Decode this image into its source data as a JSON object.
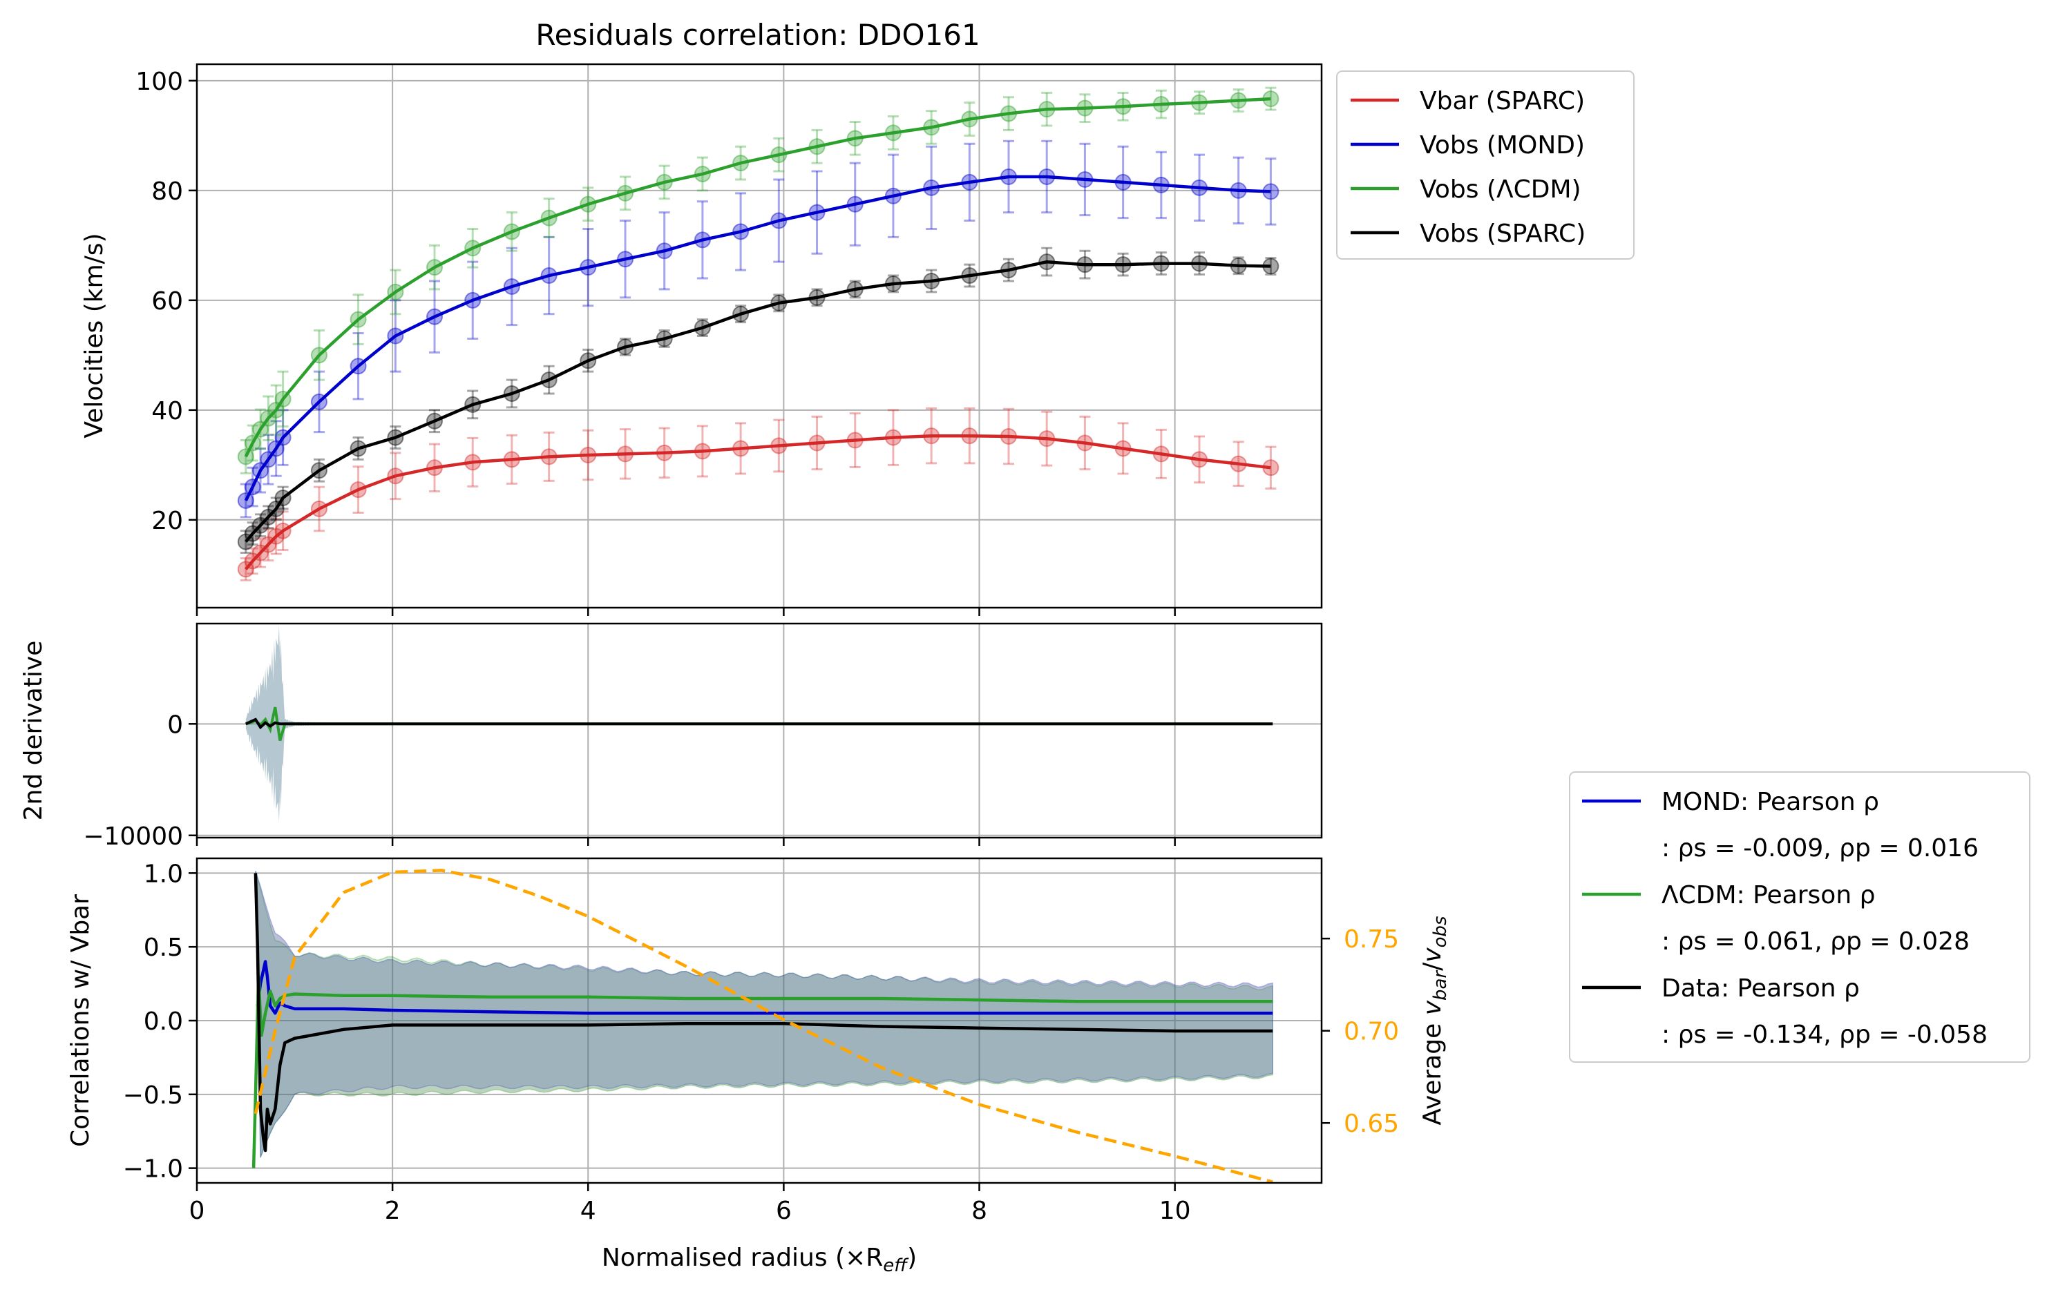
{
  "figure": {
    "title": "Residuals correlation: DDO161",
    "xlabel": "Normalised radius (×R",
    "xlabel_sub": "eff",
    "xlabel_tail": ")"
  },
  "chart_data": [
    {
      "type": "line",
      "title": "Residuals correlation: DDO161",
      "xlabel": "",
      "ylabel": "Velocities (km/s)",
      "xlim": [
        0,
        11.5
      ],
      "ylim": [
        4,
        103
      ],
      "xticks": [
        0,
        2,
        4,
        6,
        8,
        10
      ],
      "yticks": [
        20,
        40,
        60,
        80,
        100
      ],
      "grid": true,
      "legend_placement": "outside upper right",
      "x": [
        0.5,
        0.57,
        0.65,
        0.73,
        0.81,
        0.88,
        1.25,
        1.65,
        2.03,
        2.43,
        2.82,
        3.22,
        3.6,
        4.0,
        4.38,
        4.78,
        5.17,
        5.56,
        5.95,
        6.34,
        6.73,
        7.12,
        7.51,
        7.9,
        8.3,
        8.69,
        9.08,
        9.47,
        9.86,
        10.25,
        10.65,
        10.98
      ],
      "series": [
        {
          "name": "Vbar (SPARC)",
          "color": "#d62728",
          "values": [
            11,
            12.5,
            14,
            15.5,
            17,
            18,
            22,
            25.5,
            28,
            29.5,
            30.5,
            31,
            31.5,
            31.8,
            32,
            32.2,
            32.5,
            33,
            33.5,
            34,
            34.5,
            35,
            35.3,
            35.3,
            35.2,
            34.8,
            34,
            33,
            32,
            31,
            30.2,
            29.5
          ],
          "errors": [
            2,
            2.3,
            2.6,
            2.9,
            3.2,
            3.5,
            4,
            4.2,
            4.2,
            4.3,
            4.4,
            4.4,
            4.4,
            4.5,
            4.5,
            4.5,
            4.6,
            4.6,
            4.7,
            4.8,
            4.9,
            5,
            5,
            5,
            5,
            4.9,
            4.8,
            4.6,
            4.4,
            4.2,
            4,
            3.8
          ]
        },
        {
          "name": "Vobs (MOND)",
          "color": "#0000cd",
          "values": [
            23.5,
            26,
            29,
            31,
            33,
            35,
            41.5,
            48,
            53.5,
            57,
            60,
            62.5,
            64.5,
            66,
            67.5,
            69,
            71,
            72.5,
            74.5,
            76,
            77.5,
            79,
            80.5,
            81.5,
            82.5,
            82.5,
            82,
            81.5,
            81,
            80.5,
            80,
            79.8
          ],
          "errors": [
            3,
            3.5,
            4,
            4.5,
            5,
            5,
            5.5,
            6,
            6.5,
            6.5,
            7,
            7,
            7,
            7,
            7,
            7,
            7,
            7,
            7.5,
            7.5,
            7.5,
            7.5,
            7.5,
            7,
            6.5,
            6.5,
            6.5,
            6.5,
            6,
            6,
            6,
            6
          ]
        },
        {
          "name": "Vobs (ΛCDM)",
          "color": "#2ca02c",
          "values": [
            31.5,
            34,
            36.5,
            38.5,
            40,
            42,
            50,
            56.5,
            61.5,
            66,
            69.5,
            72.5,
            75,
            77.5,
            79.5,
            81.5,
            83,
            85,
            86.5,
            88,
            89.5,
            90.5,
            91.5,
            93,
            94,
            94.8,
            95,
            95.3,
            95.7,
            96,
            96.4,
            96.7
          ],
          "errors": [
            3,
            3.2,
            3.6,
            4,
            4.5,
            5,
            4.5,
            4.5,
            4,
            4,
            3.5,
            3.5,
            3.5,
            3,
            3,
            3,
            3,
            3,
            3,
            3,
            3,
            3,
            3,
            3,
            3,
            3,
            2.5,
            2.5,
            2.5,
            2,
            2,
            2
          ]
        },
        {
          "name": "Vobs (SPARC)",
          "color": "#000000",
          "values": [
            16,
            17.5,
            19,
            20.5,
            22,
            24,
            29,
            33,
            35,
            38,
            41,
            43,
            45.5,
            49,
            51.5,
            53,
            55,
            57.5,
            59.5,
            60.5,
            62,
            63,
            63.5,
            64.5,
            65.5,
            67,
            66.5,
            66.5,
            66.7,
            66.7,
            66.3,
            66.2
          ],
          "errors": [
            2,
            2,
            2,
            2,
            2,
            2,
            2,
            2,
            2,
            2,
            2.5,
            2.5,
            2.5,
            2,
            1.5,
            1.5,
            1.5,
            1.5,
            1.5,
            1.5,
            1.5,
            1.5,
            2,
            2,
            2,
            2.5,
            2.5,
            2,
            2,
            2,
            1.5,
            1.5
          ]
        }
      ]
    },
    {
      "type": "line",
      "xlabel": "",
      "ylabel": "2nd derivative",
      "xlim": [
        0,
        11.5
      ],
      "ylim": [
        -10200,
        9000
      ],
      "yticks": [
        -10000,
        0
      ],
      "ytick_labels": [
        "−10000",
        "0"
      ],
      "grid": true,
      "series_colors": {
        "mond": "#0000cd",
        "lcdm": "#2ca02c",
        "data": "#000000"
      },
      "x": [
        0.5,
        0.55,
        0.6,
        0.65,
        0.7,
        0.75,
        0.8,
        0.85,
        0.9,
        1.0,
        2.0,
        4.0,
        6.0,
        8.0,
        10.0,
        11.0
      ],
      "data_values": [
        0,
        200,
        400,
        -300,
        100,
        -200,
        100,
        0,
        0,
        0,
        0,
        0,
        0,
        0,
        0,
        0
      ],
      "lcdm_values": [
        0,
        100,
        300,
        -100,
        400,
        -500,
        1500,
        -1500,
        0,
        0,
        0,
        0,
        0,
        0,
        0,
        0
      ],
      "band_halfwidth": [
        500,
        2000,
        3000,
        4000,
        5000,
        6000,
        8000,
        9500,
        500,
        200,
        0,
        0,
        0,
        0,
        0,
        0
      ]
    },
    {
      "type": "line",
      "xlabel": "Normalised radius (×Reff)",
      "ylabel": "Correlations w/ Vbar",
      "y2label": "Average vbar/vobs",
      "xlim": [
        0,
        11.5
      ],
      "ylim": [
        -1.1,
        1.1
      ],
      "y2lim": [
        0.6175,
        0.7935
      ],
      "xticks": [
        0,
        2,
        4,
        6,
        8,
        10
      ],
      "yticks": [
        -1.0,
        -0.5,
        0.0,
        0.5,
        1.0
      ],
      "ytick_labels": [
        "−1.0",
        "−0.5",
        "0.0",
        "0.5",
        "1.0"
      ],
      "y2ticks": [
        0.65,
        0.7,
        0.75
      ],
      "y2tick_labels": [
        "0.65",
        "0.70",
        "0.75"
      ],
      "grid": true,
      "legend_placement": "outside lower right",
      "series": [
        {
          "name": "MOND: Pearson ρ",
          "color": "#0000cd",
          "x": [
            0.62,
            0.65,
            0.7,
            0.72,
            0.75,
            0.8,
            0.85,
            0.9,
            1.0,
            1.5,
            2.0,
            3.0,
            4.0,
            5.0,
            6.0,
            7.0,
            8.0,
            9.0,
            10.0,
            11.0
          ],
          "values": [
            0.1,
            0.25,
            0.4,
            0.3,
            0.1,
            0.05,
            0.12,
            0.1,
            0.08,
            0.08,
            0.07,
            0.06,
            0.05,
            0.05,
            0.05,
            0.05,
            0.05,
            0.05,
            0.05,
            0.05
          ]
        },
        {
          "name": "ΛCDM: Pearson ρ",
          "color": "#2ca02c",
          "x": [
            0.58,
            0.6,
            0.63,
            0.66,
            0.7,
            0.75,
            0.8,
            0.85,
            0.9,
            1.0,
            1.5,
            2.0,
            3.0,
            4.0,
            5.0,
            6.0,
            7.0,
            8.0,
            9.0,
            10.0,
            11.0
          ],
          "values": [
            -1.0,
            -0.5,
            0.3,
            -0.1,
            0.05,
            0.2,
            0.1,
            0.15,
            0.17,
            0.18,
            0.17,
            0.17,
            0.16,
            0.16,
            0.15,
            0.15,
            0.15,
            0.14,
            0.13,
            0.13,
            0.13
          ]
        },
        {
          "name": "Data: Pearson ρ",
          "color": "#000000",
          "x": [
            0.6,
            0.62,
            0.65,
            0.68,
            0.7,
            0.72,
            0.75,
            0.8,
            0.85,
            0.9,
            1.0,
            1.5,
            2.0,
            3.0,
            4.0,
            5.0,
            6.0,
            7.0,
            8.0,
            9.0,
            10.0,
            11.0
          ],
          "values": [
            1.0,
            0.5,
            -0.6,
            -0.8,
            -0.88,
            -0.6,
            -0.7,
            -0.6,
            -0.3,
            -0.15,
            -0.12,
            -0.06,
            -0.03,
            -0.03,
            -0.03,
            -0.02,
            -0.02,
            -0.04,
            -0.05,
            -0.06,
            -0.07,
            -0.07
          ]
        },
        {
          "name": "Average vbar/vobs",
          "color": "#ffa500",
          "axis": "right",
          "dashed": true,
          "x": [
            0.6,
            0.8,
            1.0,
            1.5,
            2.0,
            2.5,
            3.0,
            3.5,
            4.0,
            5.0,
            6.0,
            7.0,
            8.0,
            9.0,
            10.0,
            11.0
          ],
          "values": [
            0.655,
            0.7,
            0.74,
            0.775,
            0.786,
            0.787,
            0.782,
            0.773,
            0.762,
            0.735,
            0.706,
            0.68,
            0.66,
            0.645,
            0.632,
            0.618
          ]
        }
      ],
      "bands": {
        "mond_upper": [
          [
            0.6,
            1.0
          ],
          [
            0.8,
            0.6
          ],
          [
            1.0,
            0.45
          ],
          [
            2.0,
            0.4
          ],
          [
            3.0,
            0.38
          ],
          [
            4.0,
            0.36
          ],
          [
            5.0,
            0.32
          ],
          [
            6.0,
            0.31
          ],
          [
            7.0,
            0.29
          ],
          [
            8.0,
            0.27
          ],
          [
            9.0,
            0.26
          ],
          [
            10.0,
            0.25
          ],
          [
            11.0,
            0.24
          ]
        ],
        "mond_lower": [
          [
            0.6,
            -1.0
          ],
          [
            0.8,
            -0.7
          ],
          [
            1.0,
            -0.5
          ],
          [
            2.0,
            -0.45
          ],
          [
            3.0,
            -0.45
          ],
          [
            4.0,
            -0.45
          ],
          [
            5.0,
            -0.44
          ],
          [
            6.0,
            -0.43
          ],
          [
            7.0,
            -0.42
          ],
          [
            8.0,
            -0.41
          ],
          [
            9.0,
            -0.4
          ],
          [
            10.0,
            -0.39
          ],
          [
            11.0,
            -0.37
          ]
        ],
        "lcdm_upper": [
          [
            0.6,
            1.0
          ],
          [
            0.8,
            0.55
          ],
          [
            1.0,
            0.45
          ],
          [
            2.0,
            0.42
          ],
          [
            3.0,
            0.38
          ],
          [
            4.0,
            0.35
          ],
          [
            5.0,
            0.32
          ],
          [
            6.0,
            0.31
          ],
          [
            7.0,
            0.29
          ],
          [
            8.0,
            0.26
          ],
          [
            9.0,
            0.25
          ],
          [
            10.0,
            0.24
          ],
          [
            11.0,
            0.22
          ]
        ],
        "lcdm_lower": [
          [
            0.6,
            -1.0
          ],
          [
            0.8,
            -0.7
          ],
          [
            1.0,
            -0.5
          ],
          [
            2.0,
            -0.5
          ],
          [
            3.0,
            -0.48
          ],
          [
            4.0,
            -0.47
          ],
          [
            5.0,
            -0.45
          ],
          [
            6.0,
            -0.44
          ],
          [
            7.0,
            -0.43
          ],
          [
            8.0,
            -0.42
          ],
          [
            9.0,
            -0.41
          ],
          [
            10.0,
            -0.4
          ],
          [
            11.0,
            -0.38
          ]
        ]
      }
    }
  ],
  "legend_velocities": [
    {
      "label": "Vbar (SPARC)",
      "color": "#d62728"
    },
    {
      "label": "Vobs (MOND)",
      "color": "#0000cd"
    },
    {
      "label": "Vobs (ΛCDM)",
      "color": "#2ca02c"
    },
    {
      "label": "Vobs (SPARC)",
      "color": "#000000"
    }
  ],
  "legend_correlations": [
    {
      "label": "MOND: Pearson ρ",
      "color": "#0000cd",
      "stats": ": ρs = -0.009, ρp = 0.016"
    },
    {
      "label": "ΛCDM: Pearson ρ",
      "color": "#2ca02c",
      "stats": ": ρs = 0.061, ρp = 0.028"
    },
    {
      "label": "Data: Pearson ρ",
      "color": "#000000",
      "stats": ": ρs = -0.134, ρp = -0.058"
    }
  ]
}
